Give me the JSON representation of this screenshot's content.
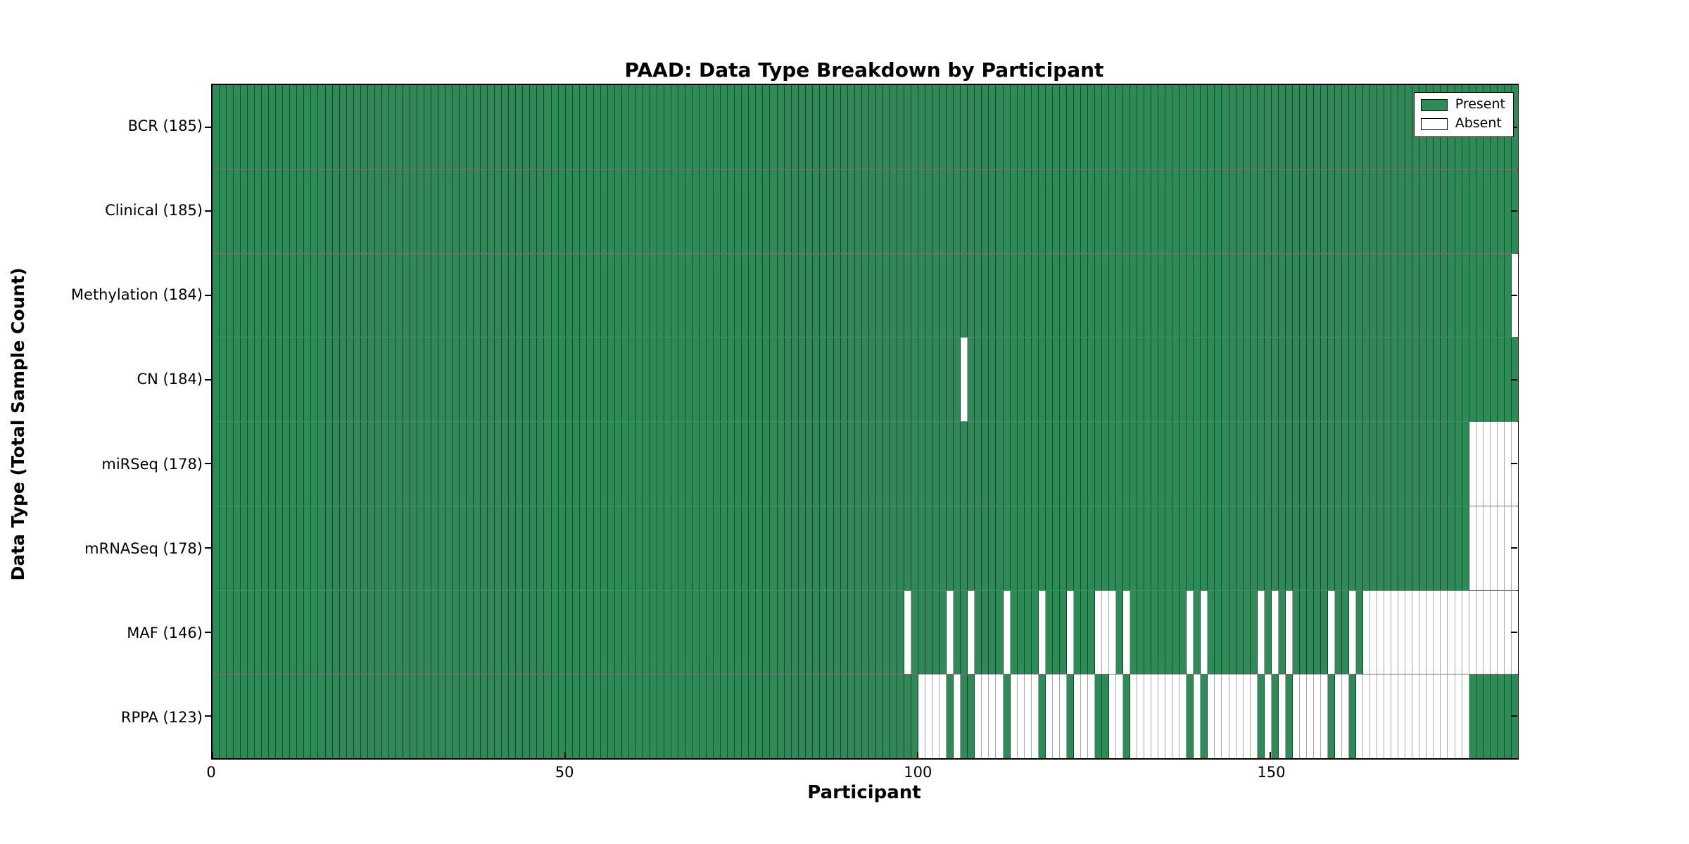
{
  "figure": {
    "title": "PAAD: Data Type Breakdown by Participant",
    "xlabel": "Participant",
    "ylabel": "Data Type (Total Sample Count)"
  },
  "legend": {
    "present_label": "Present",
    "absent_label": "Absent"
  },
  "colors": {
    "present": "#2E8B57",
    "absent": "#FFFFFF",
    "axis": "#000000"
  },
  "chart_data": {
    "type": "heatmap",
    "title": "PAAD: Data Type Breakdown by Participant",
    "xlabel": "Participant",
    "ylabel": "Data Type (Total Sample Count)",
    "cohort": "PAAD",
    "n_participants": 185,
    "xlim": [
      0,
      185
    ],
    "x_ticks": [
      0,
      50,
      100,
      150
    ],
    "grid": false,
    "legend_position": "upper right",
    "legend": [
      {
        "label": "Present",
        "color": "#2E8B57"
      },
      {
        "label": "Absent",
        "color": "#FFFFFF"
      }
    ],
    "rows": [
      {
        "label": "BCR (185)",
        "data_type": "BCR",
        "present_count": 185,
        "absent_ranges": []
      },
      {
        "label": "Clinical (185)",
        "data_type": "Clinical",
        "present_count": 185,
        "absent_ranges": []
      },
      {
        "label": "Methylation (184)",
        "data_type": "Methylation",
        "present_count": 184,
        "absent_ranges": [
          [
            184,
            184
          ]
        ]
      },
      {
        "label": "CN (184)",
        "data_type": "CN",
        "present_count": 184,
        "absent_ranges": [
          [
            106,
            106
          ]
        ]
      },
      {
        "label": "miRSeq (178)",
        "data_type": "miRSeq",
        "present_count": 178,
        "absent_ranges": [
          [
            178,
            184
          ]
        ]
      },
      {
        "label": "mRNASeq (178)",
        "data_type": "mRNASeq",
        "present_count": 178,
        "absent_ranges": [
          [
            178,
            184
          ]
        ]
      },
      {
        "label": "MAF (146)",
        "data_type": "MAF",
        "present_count": 146,
        "absent_ranges": [
          [
            98,
            98
          ],
          [
            104,
            104
          ],
          [
            107,
            107
          ],
          [
            112,
            112
          ],
          [
            117,
            117
          ],
          [
            121,
            121
          ],
          [
            125,
            127
          ],
          [
            129,
            129
          ],
          [
            138,
            138
          ],
          [
            140,
            140
          ],
          [
            148,
            148
          ],
          [
            150,
            150
          ],
          [
            152,
            152
          ],
          [
            158,
            158
          ],
          [
            161,
            161
          ],
          [
            163,
            184
          ]
        ]
      },
      {
        "label": "RPPA (123)",
        "data_type": "RPPA",
        "present_count": 123,
        "absent_ranges": [
          [
            100,
            103
          ],
          [
            105,
            105
          ],
          [
            108,
            111
          ],
          [
            113,
            116
          ],
          [
            118,
            120
          ],
          [
            122,
            124
          ],
          [
            127,
            128
          ],
          [
            130,
            137
          ],
          [
            139,
            139
          ],
          [
            141,
            147
          ],
          [
            149,
            149
          ],
          [
            151,
            151
          ],
          [
            153,
            157
          ],
          [
            159,
            160
          ],
          [
            162,
            177
          ]
        ]
      }
    ]
  }
}
